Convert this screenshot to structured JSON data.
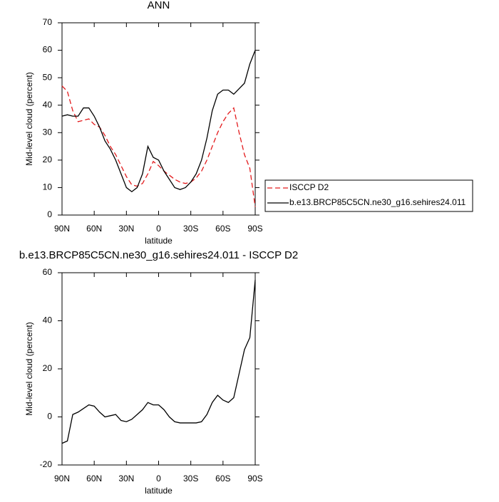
{
  "chart_data": [
    {
      "type": "line",
      "title": "ANN",
      "x_label": "latitude",
      "y_label": "Mid-level cloud (percent)",
      "x": [
        90,
        85,
        80,
        75,
        70,
        65,
        60,
        55,
        50,
        45,
        40,
        35,
        30,
        25,
        20,
        15,
        10,
        5,
        0,
        -5,
        -10,
        -15,
        -20,
        -25,
        -30,
        -35,
        -40,
        -45,
        -50,
        -55,
        -60,
        -65,
        -70,
        -75,
        -80,
        -85,
        -90
      ],
      "xlim": [
        90,
        -90
      ],
      "xticks": [
        {
          "value": 90,
          "label": "90N"
        },
        {
          "value": 60,
          "label": "60N"
        },
        {
          "value": 30,
          "label": "30N"
        },
        0,
        {
          "value": -30,
          "label": "30S"
        },
        {
          "value": -60,
          "label": "60S"
        },
        {
          "value": -90,
          "label": "90S"
        }
      ],
      "ylim": [
        0,
        70
      ],
      "yticks": [
        0,
        10,
        20,
        30,
        40,
        50,
        60,
        70
      ],
      "legend": "right",
      "series": [
        {
          "name": "ISCCP D2",
          "color": "#e31a1c",
          "dash": true,
          "values": [
            47,
            45,
            38,
            34,
            34.5,
            35,
            33,
            32,
            29,
            25,
            22,
            18,
            14,
            11,
            10.5,
            11.5,
            15,
            19.5,
            18,
            16,
            14.5,
            13,
            12,
            11.5,
            12,
            13.5,
            16,
            20,
            25,
            30,
            34,
            37,
            39,
            30,
            22,
            17,
            3
          ]
        },
        {
          "name": "b.e13.BRCP85C5CN.ne30_g16.sehires24.011",
          "color": "#000000",
          "dash": false,
          "values": [
            36,
            36.5,
            36,
            36,
            39,
            39,
            36,
            32,
            27,
            24,
            20,
            15,
            10,
            8.5,
            10,
            15,
            25,
            21,
            20,
            16,
            13,
            10,
            9.3,
            10,
            12,
            15,
            20,
            28,
            38,
            44,
            45.5,
            45.5,
            44,
            46,
            48,
            55,
            60
          ]
        }
      ]
    },
    {
      "type": "line",
      "title": "b.e13.BRCP85C5CN.ne30_g16.sehires24.011 - ISCCP D2",
      "x_label": "latitude",
      "y_label": "Mid-level cloud (percent)",
      "x": [
        90,
        85,
        80,
        75,
        70,
        65,
        60,
        55,
        50,
        45,
        40,
        35,
        30,
        25,
        20,
        15,
        10,
        5,
        0,
        -5,
        -10,
        -15,
        -20,
        -25,
        -30,
        -35,
        -40,
        -45,
        -50,
        -55,
        -60,
        -65,
        -70,
        -75,
        -80,
        -85,
        -90
      ],
      "xlim": [
        90,
        -90
      ],
      "xticks": [
        {
          "value": 90,
          "label": "90N"
        },
        {
          "value": 60,
          "label": "60N"
        },
        {
          "value": 30,
          "label": "30N"
        },
        0,
        {
          "value": -30,
          "label": "30S"
        },
        {
          "value": -60,
          "label": "60S"
        },
        {
          "value": -90,
          "label": "90S"
        }
      ],
      "ylim": [
        -20,
        60
      ],
      "yticks": [
        -20,
        0,
        20,
        40,
        60
      ],
      "series": [
        {
          "color": "#000000",
          "dash": false,
          "values": [
            -11,
            -10,
            1,
            2,
            3.5,
            5,
            4.5,
            2,
            0,
            0.5,
            1,
            -1.5,
            -2,
            -1,
            1,
            3,
            6,
            5,
            5,
            3,
            0,
            -2,
            -2.5,
            -2.5,
            -2.5,
            -2.5,
            -2,
            1,
            6,
            9,
            7,
            6,
            8,
            18,
            28,
            33,
            57
          ]
        }
      ]
    }
  ]
}
